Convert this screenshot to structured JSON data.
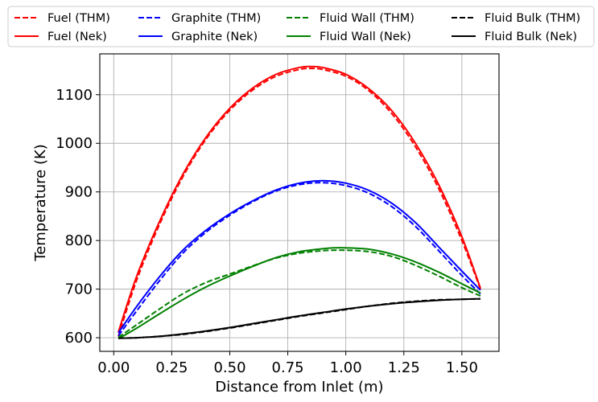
{
  "chart_data": {
    "type": "line",
    "title": "",
    "xlabel": "Distance from Inlet (m)",
    "ylabel": "Temperature (K)",
    "xlim": [
      -0.06,
      1.66
    ],
    "ylim": [
      572,
      1184
    ],
    "x_ticks": [
      0.0,
      0.25,
      0.5,
      0.75,
      1.0,
      1.25,
      1.5
    ],
    "x_tick_labels": [
      "0.00",
      "0.25",
      "0.50",
      "0.75",
      "1.00",
      "1.25",
      "1.50"
    ],
    "y_ticks": [
      600,
      700,
      800,
      900,
      1000,
      1100
    ],
    "y_tick_labels": [
      "600",
      "700",
      "800",
      "900",
      "1000",
      "1100"
    ],
    "grid": true,
    "legend_position": "top, above plot, 4 columns",
    "series": [
      {
        "name": "Fuel (THM)",
        "color": "#ff0000",
        "dash": "dashed",
        "x": [
          0.02,
          0.1,
          0.2,
          0.3,
          0.4,
          0.5,
          0.6,
          0.7,
          0.8,
          0.85,
          0.9,
          1.0,
          1.1,
          1.2,
          1.3,
          1.4,
          1.5,
          1.58
        ],
        "y": [
          603,
          720,
          836,
          933,
          1010,
          1068,
          1110,
          1138,
          1152,
          1154,
          1152,
          1138,
          1108,
          1060,
          993,
          907,
          800,
          700
        ]
      },
      {
        "name": "Fuel (Nek)",
        "color": "#ff0000",
        "dash": "solid",
        "x": [
          0.02,
          0.1,
          0.2,
          0.3,
          0.4,
          0.5,
          0.6,
          0.7,
          0.8,
          0.85,
          0.9,
          1.0,
          1.1,
          1.2,
          1.3,
          1.4,
          1.5,
          1.58
        ],
        "y": [
          612,
          728,
          842,
          938,
          1014,
          1072,
          1114,
          1142,
          1156,
          1158,
          1156,
          1142,
          1112,
          1066,
          1000,
          915,
          808,
          702
        ]
      },
      {
        "name": "Graphite (THM)",
        "color": "#0000ff",
        "dash": "dashed",
        "x": [
          0.02,
          0.1,
          0.2,
          0.3,
          0.4,
          0.5,
          0.6,
          0.7,
          0.8,
          0.9,
          1.0,
          1.1,
          1.2,
          1.3,
          1.4,
          1.5,
          1.58
        ],
        "y": [
          604,
          656,
          719,
          775,
          818,
          852,
          880,
          902,
          915,
          919,
          913,
          897,
          869,
          829,
          779,
          728,
          690
        ]
      },
      {
        "name": "Graphite (Nek)",
        "color": "#0000ff",
        "dash": "solid",
        "x": [
          0.02,
          0.1,
          0.2,
          0.3,
          0.4,
          0.5,
          0.6,
          0.7,
          0.8,
          0.9,
          1.0,
          1.1,
          1.2,
          1.3,
          1.4,
          1.5,
          1.58
        ],
        "y": [
          610,
          665,
          727,
          781,
          822,
          855,
          882,
          904,
          918,
          923,
          918,
          903,
          876,
          837,
          787,
          737,
          698
        ]
      },
      {
        "name": "Fluid Wall (THM)",
        "color": "#008000",
        "dash": "dashed",
        "x": [
          0.02,
          0.1,
          0.2,
          0.3,
          0.4,
          0.5,
          0.6,
          0.7,
          0.8,
          0.9,
          0.95,
          1.0,
          1.1,
          1.2,
          1.3,
          1.4,
          1.5,
          1.58
        ],
        "y": [
          601,
          627,
          660,
          691,
          714,
          731,
          748,
          764,
          774,
          779,
          780,
          780,
          777,
          767,
          749,
          727,
          703,
          686
        ]
      },
      {
        "name": "Fluid Wall (Nek)",
        "color": "#008000",
        "dash": "solid",
        "x": [
          0.02,
          0.1,
          0.2,
          0.3,
          0.4,
          0.5,
          0.6,
          0.7,
          0.8,
          0.9,
          0.95,
          1.0,
          1.1,
          1.2,
          1.3,
          1.4,
          1.5,
          1.58
        ],
        "y": [
          598,
          620,
          650,
          679,
          705,
          727,
          747,
          765,
          777,
          783,
          785,
          785,
          782,
          772,
          756,
          735,
          711,
          692
        ]
      },
      {
        "name": "Fluid Bulk (THM)",
        "color": "#000000",
        "dash": "dashed",
        "x": [
          0.02,
          0.1,
          0.2,
          0.3,
          0.4,
          0.5,
          0.6,
          0.7,
          0.8,
          0.9,
          1.0,
          1.1,
          1.2,
          1.3,
          1.4,
          1.5,
          1.58
        ],
        "y": [
          599,
          600,
          603,
          607,
          613,
          620,
          628,
          636,
          644,
          651,
          658,
          665,
          671,
          675,
          678,
          679,
          680
        ]
      },
      {
        "name": "Fluid Bulk (Nek)",
        "color": "#000000",
        "dash": "solid",
        "x": [
          0.02,
          0.1,
          0.2,
          0.3,
          0.4,
          0.5,
          0.6,
          0.7,
          0.8,
          0.9,
          1.0,
          1.1,
          1.2,
          1.3,
          1.4,
          1.5,
          1.58
        ],
        "y": [
          599,
          600,
          603,
          608,
          614,
          621,
          629,
          637,
          645,
          652,
          659,
          665,
          670,
          674,
          677,
          679,
          680
        ]
      }
    ]
  }
}
